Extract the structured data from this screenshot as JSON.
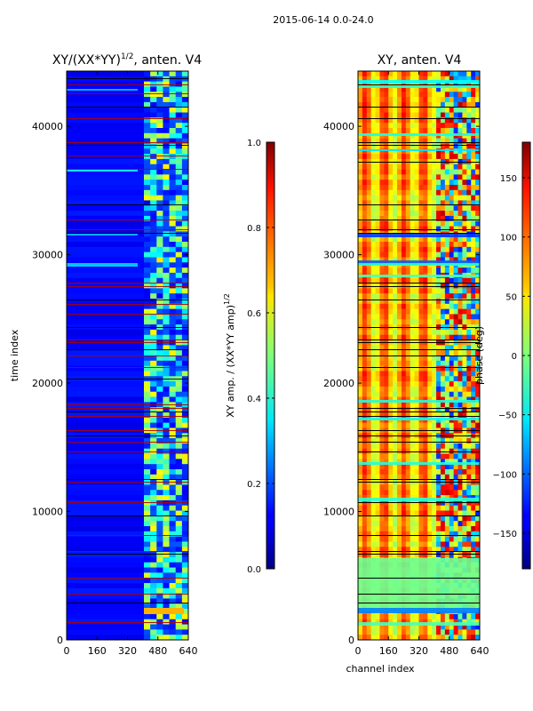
{
  "suptitle": "2015-06-14 0.0-24.0",
  "chart_data": [
    {
      "type": "heatmap",
      "title_main": "XY/(XX*YY)",
      "title_sup": "1/2",
      "title_suffix": ", anten. V4",
      "xlabel": "",
      "ylabel": "time index",
      "xlim": [
        0,
        640
      ],
      "ylim": [
        0,
        44300
      ],
      "xticks": [
        0,
        160,
        320,
        480,
        640
      ],
      "yticks": [
        0,
        10000,
        20000,
        30000,
        40000
      ],
      "colorbar": {
        "label_main": "XY amp. / (XX*YY amp)",
        "label_sup": "1/2",
        "range": [
          0.0,
          1.0
        ],
        "ticks": [
          "0.0",
          "0.2",
          "0.4",
          "0.6",
          "0.8",
          "1.0"
        ],
        "tick_values": [
          0.0,
          0.2,
          0.4,
          0.6,
          0.8,
          1.0
        ],
        "colormap": "jet"
      }
    },
    {
      "type": "heatmap",
      "title_main": "XY, anten. V4",
      "xlabel": "channel index",
      "ylabel": "",
      "xlim": [
        0,
        640
      ],
      "ylim": [
        0,
        44300
      ],
      "xticks": [
        0,
        160,
        320,
        480,
        640
      ],
      "yticks": [
        0,
        10000,
        20000,
        30000,
        40000
      ],
      "colorbar": {
        "label_main": "phase (deg)",
        "range": [
          -180,
          180
        ],
        "ticks": [
          "150",
          "100",
          "50",
          "0",
          "−50",
          "−100",
          "−150"
        ],
        "tick_values": [
          150,
          100,
          50,
          0,
          -50,
          -100,
          -150
        ],
        "colormap": "jet"
      }
    }
  ]
}
